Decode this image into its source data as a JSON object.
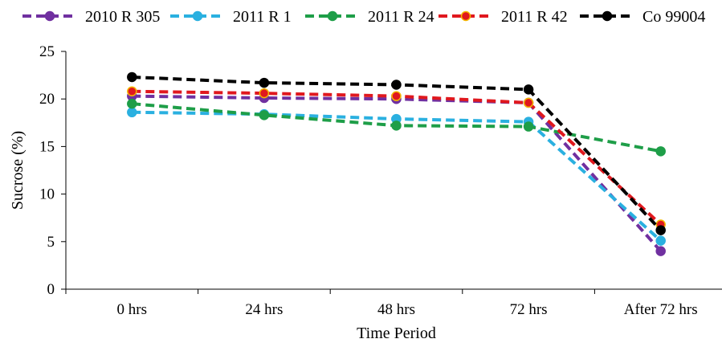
{
  "chart_data": {
    "type": "line",
    "xlabel": "Time Period",
    "ylabel": "Sucrose (%)",
    "categories": [
      "0 hrs",
      "24 hrs",
      "48 hrs",
      "72 hrs",
      "After 72 hrs"
    ],
    "ylim": [
      0,
      25
    ],
    "yticks": [
      "0",
      "5",
      "10",
      "15",
      "20",
      "25"
    ],
    "legend_position": "top",
    "grid": false,
    "series": [
      {
        "name": "2010 R 305",
        "color": "#7030a0",
        "marker_edge": "#7030a0",
        "values": [
          20.3,
          20.1,
          20.0,
          19.6,
          4.0
        ]
      },
      {
        "name": "2011 R 1",
        "color": "#2ab0e0",
        "marker_edge": "#2ab0e0",
        "values": [
          18.6,
          18.4,
          17.9,
          17.6,
          5.1
        ]
      },
      {
        "name": "2011 R 24",
        "color": "#1e9e48",
        "marker_edge": "#1e9e48",
        "values": [
          19.5,
          18.3,
          17.2,
          17.1,
          14.5
        ]
      },
      {
        "name": "2011 R 42",
        "color": "#e0181e",
        "marker_edge": "#f5b800",
        "values": [
          20.8,
          20.6,
          20.3,
          19.6,
          6.8
        ]
      },
      {
        "name": "Co 99004",
        "color": "#000000",
        "marker_edge": "#000000",
        "values": [
          22.3,
          21.7,
          21.5,
          21.0,
          6.2
        ]
      }
    ]
  }
}
